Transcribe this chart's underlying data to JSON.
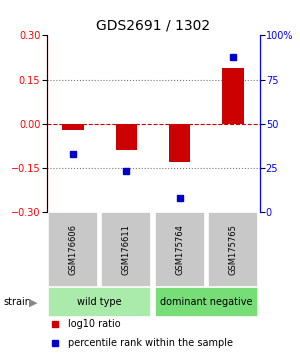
{
  "title": "GDS2691 / 1302",
  "samples": [
    "GSM176606",
    "GSM176611",
    "GSM175764",
    "GSM175765"
  ],
  "log10_ratio": [
    -0.022,
    -0.09,
    -0.13,
    0.19
  ],
  "percentile_rank": [
    33,
    23,
    8,
    88
  ],
  "ylim_left": [
    -0.3,
    0.3
  ],
  "ylim_right": [
    0,
    100
  ],
  "yticks_left": [
    -0.3,
    -0.15,
    0,
    0.15,
    0.3
  ],
  "yticks_right": [
    0,
    25,
    50,
    75,
    100
  ],
  "ytick_labels_right": [
    "0",
    "25",
    "50",
    "75",
    "100%"
  ],
  "bar_color": "#cc0000",
  "scatter_color": "#0000cc",
  "zero_line_color": "#cc0000",
  "dotted_line_color": "#777777",
  "groups": [
    {
      "label": "wild type",
      "samples": [
        0,
        1
      ],
      "color": "#aaeaaa"
    },
    {
      "label": "dominant negative",
      "samples": [
        2,
        3
      ],
      "color": "#77dd77"
    }
  ],
  "strain_label": "strain",
  "legend_bar_label": "log10 ratio",
  "legend_scatter_label": "percentile rank within the sample",
  "sample_box_color": "#c8c8c8",
  "background_color": "#ffffff",
  "title_fontsize": 10,
  "tick_fontsize": 7,
  "sample_fontsize": 6,
  "group_fontsize": 7,
  "legend_fontsize": 7
}
